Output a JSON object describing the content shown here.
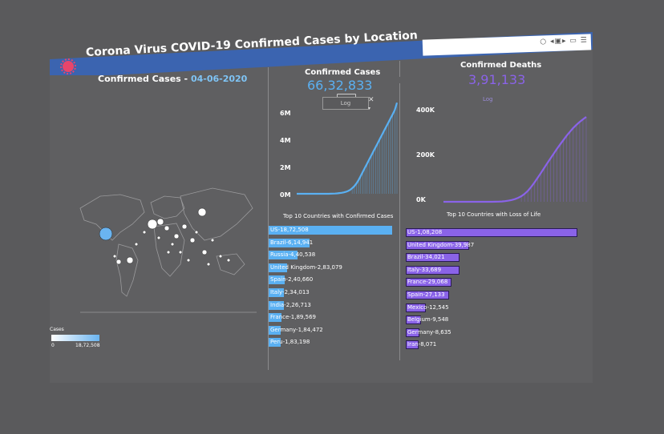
{
  "header": {
    "title": "Corona Virus COVID-19 Confirmed Cases by Location",
    "icons": [
      "virus-icon"
    ]
  },
  "map": {
    "title_prefix": "Confirmed Cases - ",
    "date": "04-06-2020",
    "legend_title": "Cases",
    "legend_min": "0",
    "legend_max": "18,72,508"
  },
  "confirmed": {
    "label": "Confirmed Cases",
    "value": "66,32,833",
    "scale_label": "Log",
    "close_glyph": "✕",
    "arrow_glyph": "▾",
    "color": "#5ab0f2"
  },
  "deaths": {
    "label": "Confirmed Deaths",
    "value": "3,91,133",
    "scale_label": "Log",
    "color": "#8a63e8"
  },
  "chart_data": [
    {
      "type": "area",
      "yticks": [
        "6M",
        "4M",
        "2M",
        "0M"
      ],
      "ylim": [
        0,
        7000000
      ],
      "series": [
        {
          "values": [
            0,
            0,
            0,
            0,
            0,
            0,
            0,
            0,
            0,
            0,
            0,
            0,
            0,
            0,
            1000,
            2000,
            5000,
            10000,
            20000,
            30000,
            50000,
            70000,
            100000,
            140000,
            200000,
            280000,
            400000,
            550000,
            750000,
            1000000,
            1300000,
            1600000,
            1900000,
            2200000,
            2500000,
            2800000,
            3100000,
            3400000,
            3700000,
            4000000,
            4300000,
            4600000,
            4900000,
            5200000,
            5500000,
            5800000,
            6100000,
            6632833
          ]
        }
      ]
    },
    {
      "type": "area",
      "yticks": [
        "400K",
        "200K",
        "0K"
      ],
      "ylim": [
        0,
        450000
      ],
      "series": [
        {
          "values": [
            0,
            0,
            0,
            0,
            0,
            0,
            0,
            0,
            0,
            0,
            0,
            0,
            0,
            0,
            0,
            100,
            300,
            800,
            1500,
            3000,
            5000,
            8000,
            12000,
            18000,
            26000,
            36000,
            50000,
            68000,
            88000,
            110000,
            132000,
            155000,
            178000,
            200000,
            222000,
            244000,
            265000,
            285000,
            305000,
            323000,
            340000,
            355000,
            368000,
            380000,
            391133
          ]
        }
      ]
    },
    {
      "type": "bar",
      "title": "Top 10 Countries with Confirmed Cases",
      "categories": [
        "US",
        "Brazil",
        "Russia",
        "United Kingdom",
        "Spain",
        "Italy",
        "India",
        "France",
        "Germany",
        "Peru"
      ],
      "labels": [
        "US-18,72,508",
        "Brazil-6,14,941",
        "Russia-4,40,538",
        "United Kingdom-2,83,079",
        "Spain-2,40,660",
        "Italy-2,34,013",
        "India-2,26,713",
        "France-1,89,569",
        "Germany-1,84,472",
        "Peru-1,83,198"
      ],
      "values": [
        1872508,
        614941,
        440538,
        283079,
        240660,
        234013,
        226713,
        189569,
        184472,
        183198
      ],
      "color": "#5ab0f2"
    },
    {
      "type": "bar",
      "title": "Top 10 Countries with Loss of Life",
      "categories": [
        "US",
        "United Kingdom",
        "Brazil",
        "Italy",
        "France",
        "Spain",
        "Mexico",
        "Belgium",
        "Germany",
        "Iran"
      ],
      "labels": [
        "US-1,08,208",
        "United Kingdom-39,987",
        "Brazil-34,021",
        "Italy-33,689",
        "France-29,068",
        "Spain-27,133",
        "Mexico-12,545",
        "Belgium-9,548",
        "Germany-8,635",
        "Iran-8,071"
      ],
      "values": [
        108208,
        39987,
        34021,
        33689,
        29068,
        27133,
        12545,
        9548,
        8635,
        8071
      ],
      "color": "#8a63e8"
    }
  ]
}
